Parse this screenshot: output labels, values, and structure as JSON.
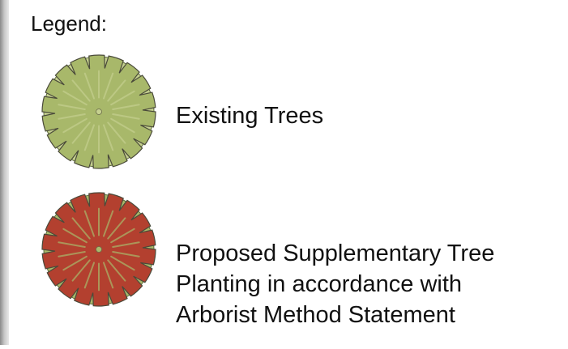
{
  "legend": {
    "title": "Legend:",
    "items": [
      {
        "lines": [
          "Existing Trees"
        ]
      },
      {
        "lines": [
          "Proposed Supplementary Tree",
          "Planting in accordance with",
          "Arborist Method Statement"
        ]
      }
    ]
  }
}
